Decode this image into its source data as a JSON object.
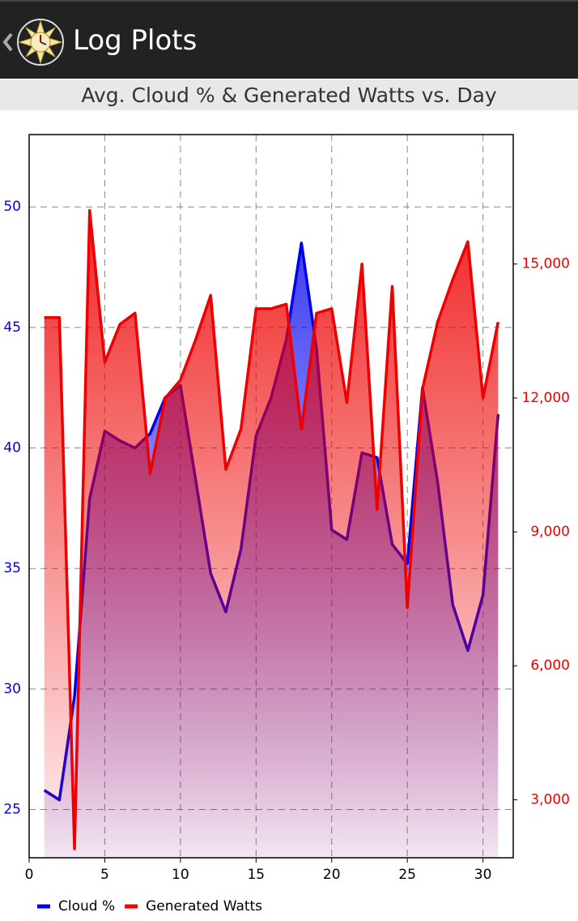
{
  "header": {
    "title": "Log Plots"
  },
  "chart_data": {
    "type": "area",
    "title": "Avg. Cloud % & Generated Watts vs. Day",
    "x": [
      1,
      2,
      3,
      4,
      5,
      6,
      7,
      8,
      9,
      10,
      11,
      12,
      13,
      14,
      15,
      16,
      17,
      18,
      19,
      20,
      21,
      22,
      23,
      24,
      25,
      26,
      27,
      28,
      29,
      30,
      31
    ],
    "series": [
      {
        "name": "Cloud %",
        "color": "#0000ee",
        "axis": "y",
        "values": [
          25.8,
          25.4,
          29.7,
          37.9,
          40.7,
          40.3,
          40.0,
          40.6,
          42.1,
          42.6,
          38.7,
          34.8,
          33.2,
          35.8,
          40.5,
          42.1,
          44.5,
          48.5,
          44.1,
          36.6,
          36.2,
          39.8,
          39.6,
          36.0,
          35.2,
          42.5,
          38.6,
          33.5,
          31.6,
          33.9,
          41.4
        ]
      },
      {
        "name": "Generated Watts",
        "color": "#ee0000",
        "axis": "y2",
        "values": [
          13800,
          13800,
          1900,
          16200,
          12800,
          13650,
          13900,
          10300,
          12000,
          12400,
          13300,
          14300,
          10400,
          11300,
          14000,
          14000,
          14100,
          11300,
          13900,
          14000,
          11900,
          15000,
          9500,
          14500,
          7300,
          12200,
          13700,
          14650,
          15500,
          12000,
          13700
        ]
      }
    ],
    "xlim": [
      0,
      32
    ],
    "xticks": [
      0,
      5,
      10,
      15,
      20,
      25,
      30
    ],
    "ylim": [
      23,
      53
    ],
    "yticks": [
      25,
      30,
      35,
      40,
      45,
      50
    ],
    "y2lim": [
      1700,
      17900
    ],
    "y2ticks": [
      {
        "value": 3000,
        "label": "3,000"
      },
      {
        "value": 6000,
        "label": "6,000"
      },
      {
        "value": 9000,
        "label": "9,000"
      },
      {
        "value": 12000,
        "label": "12,000"
      },
      {
        "value": 15000,
        "label": "15,000"
      }
    ],
    "grid": true,
    "legend": "bottom-left"
  }
}
